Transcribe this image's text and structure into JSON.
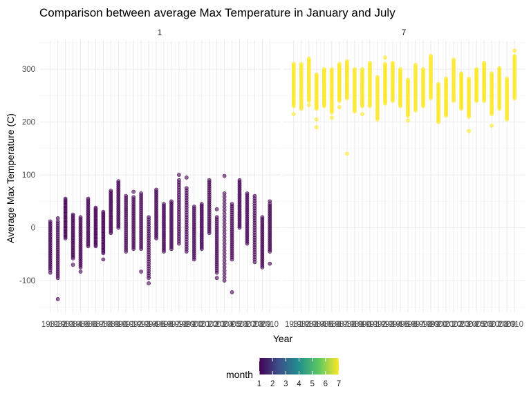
{
  "chart_data": {
    "type": "scatter",
    "title": "Comparison between average Max Temperature in January and July",
    "xlabel": "Year",
    "ylabel": "Average Max Temperature (C)",
    "ylim": [
      -160,
      355
    ],
    "y_ticks": [
      -100,
      0,
      100,
      200,
      300
    ],
    "grid": true,
    "facets": [
      "1",
      "7"
    ],
    "x_tick_labels": [
      "1981",
      "1982",
      "1983",
      "1984",
      "1985",
      "1986",
      "1987",
      "1988",
      "1989",
      "1990",
      "1991",
      "1992",
      "1993",
      "1994",
      "1995",
      "1996",
      "1997",
      "1998",
      "1999",
      "2000",
      "2001",
      "2002",
      "2003",
      "2004",
      "2005",
      "2006",
      "2007",
      "2008",
      "2009",
      "2010"
    ],
    "legend": {
      "title": "month",
      "position": "bottom",
      "type": "colorbar",
      "ticks": [
        "1",
        "2",
        "3",
        "4",
        "5",
        "6",
        "7"
      ],
      "colors": [
        "#440154",
        "#3b528b",
        "#21908d",
        "#5dc863",
        "#fde725"
      ]
    },
    "series": [
      {
        "facet": "1",
        "color": "#440154",
        "ranges": [
          {
            "year": 1981,
            "min": -80,
            "max": 12,
            "outliers": [
              -85
            ]
          },
          {
            "year": 1982,
            "min": -95,
            "max": 12,
            "outliers": [
              -135,
              18
            ]
          },
          {
            "year": 1983,
            "min": -20,
            "max": 55,
            "outliers": []
          },
          {
            "year": 1984,
            "min": -58,
            "max": 25,
            "outliers": [
              -70
            ]
          },
          {
            "year": 1985,
            "min": -75,
            "max": 20,
            "outliers": [
              -83
            ]
          },
          {
            "year": 1986,
            "min": -35,
            "max": 55,
            "outliers": []
          },
          {
            "year": 1987,
            "min": -35,
            "max": 38,
            "outliers": []
          },
          {
            "year": 1988,
            "min": -48,
            "max": 30,
            "outliers": [
              -60
            ]
          },
          {
            "year": 1989,
            "min": -10,
            "max": 70,
            "outliers": []
          },
          {
            "year": 1990,
            "min": 0,
            "max": 88,
            "outliers": []
          },
          {
            "year": 1991,
            "min": -45,
            "max": 60,
            "outliers": []
          },
          {
            "year": 1992,
            "min": -40,
            "max": 58,
            "outliers": [
              68
            ]
          },
          {
            "year": 1993,
            "min": -40,
            "max": 65,
            "outliers": [
              -83
            ]
          },
          {
            "year": 1994,
            "min": -95,
            "max": 20,
            "outliers": [
              -105
            ]
          },
          {
            "year": 1995,
            "min": -20,
            "max": 72,
            "outliers": []
          },
          {
            "year": 1996,
            "min": -45,
            "max": 45,
            "outliers": []
          },
          {
            "year": 1997,
            "min": -40,
            "max": 50,
            "outliers": []
          },
          {
            "year": 1998,
            "min": -30,
            "max": 90,
            "outliers": [
              100
            ]
          },
          {
            "year": 1999,
            "min": -45,
            "max": 75,
            "outliers": [
              95
            ]
          },
          {
            "year": 2000,
            "min": -60,
            "max": 40,
            "outliers": []
          },
          {
            "year": 2001,
            "min": -40,
            "max": 45,
            "outliers": []
          },
          {
            "year": 2002,
            "min": -10,
            "max": 90,
            "outliers": []
          },
          {
            "year": 2003,
            "min": -85,
            "max": 20,
            "outliers": [
              -95,
              35
            ]
          },
          {
            "year": 2004,
            "min": -100,
            "max": 65,
            "outliers": [
              98
            ]
          },
          {
            "year": 2005,
            "min": -60,
            "max": 45,
            "outliers": [
              -122
            ]
          },
          {
            "year": 2006,
            "min": 0,
            "max": 90,
            "outliers": []
          },
          {
            "year": 2007,
            "min": -30,
            "max": 65,
            "outliers": []
          },
          {
            "year": 2008,
            "min": -60,
            "max": 60,
            "outliers": [
              -65
            ]
          },
          {
            "year": 2009,
            "min": -75,
            "max": 20,
            "outliers": []
          },
          {
            "year": 2010,
            "min": -45,
            "max": 45,
            "outliers": [
              -68,
              50
            ]
          }
        ]
      },
      {
        "facet": "7",
        "color": "#fde725",
        "ranges": [
          {
            "year": 1981,
            "min": 230,
            "max": 310,
            "outliers": [
              215
            ]
          },
          {
            "year": 1982,
            "min": 225,
            "max": 310,
            "outliers": []
          },
          {
            "year": 1983,
            "min": 240,
            "max": 320,
            "outliers": [
              232
            ]
          },
          {
            "year": 1984,
            "min": 225,
            "max": 290,
            "outliers": [
              190,
              205
            ]
          },
          {
            "year": 1985,
            "min": 230,
            "max": 300,
            "outliers": []
          },
          {
            "year": 1986,
            "min": 218,
            "max": 300,
            "outliers": [
              208
            ]
          },
          {
            "year": 1987,
            "min": 240,
            "max": 310,
            "outliers": [
              228
            ]
          },
          {
            "year": 1988,
            "min": 245,
            "max": 315,
            "outliers": [
              140
            ]
          },
          {
            "year": 1989,
            "min": 220,
            "max": 300,
            "outliers": []
          },
          {
            "year": 1990,
            "min": 230,
            "max": 300,
            "outliers": [
              215
            ]
          },
          {
            "year": 1991,
            "min": 230,
            "max": 312,
            "outliers": []
          },
          {
            "year": 1992,
            "min": 205,
            "max": 285,
            "outliers": []
          },
          {
            "year": 1993,
            "min": 235,
            "max": 310,
            "outliers": [
              322
            ]
          },
          {
            "year": 1994,
            "min": 240,
            "max": 312,
            "outliers": []
          },
          {
            "year": 1995,
            "min": 230,
            "max": 300,
            "outliers": []
          },
          {
            "year": 1996,
            "min": 212,
            "max": 280,
            "outliers": [
              203
            ]
          },
          {
            "year": 1997,
            "min": 222,
            "max": 308,
            "outliers": []
          },
          {
            "year": 1998,
            "min": 230,
            "max": 300,
            "outliers": []
          },
          {
            "year": 1999,
            "min": 245,
            "max": 325,
            "outliers": []
          },
          {
            "year": 2000,
            "min": 200,
            "max": 272,
            "outliers": []
          },
          {
            "year": 2001,
            "min": 212,
            "max": 282,
            "outliers": []
          },
          {
            "year": 2002,
            "min": 240,
            "max": 318,
            "outliers": []
          },
          {
            "year": 2003,
            "min": 225,
            "max": 292,
            "outliers": []
          },
          {
            "year": 2004,
            "min": 210,
            "max": 282,
            "outliers": [
              183
            ]
          },
          {
            "year": 2005,
            "min": 240,
            "max": 300,
            "outliers": []
          },
          {
            "year": 2006,
            "min": 240,
            "max": 312,
            "outliers": []
          },
          {
            "year": 2007,
            "min": 215,
            "max": 292,
            "outliers": [
              193
            ]
          },
          {
            "year": 2008,
            "min": 225,
            "max": 302,
            "outliers": []
          },
          {
            "year": 2009,
            "min": 205,
            "max": 282,
            "outliers": []
          },
          {
            "year": 2010,
            "min": 245,
            "max": 325,
            "outliers": [
              335
            ]
          }
        ]
      }
    ]
  }
}
